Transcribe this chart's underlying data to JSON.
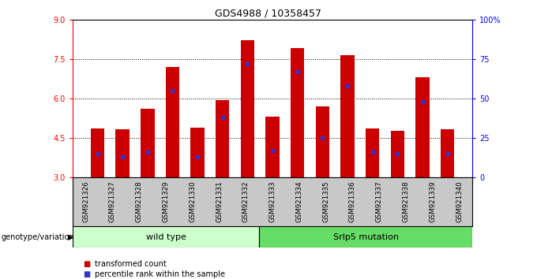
{
  "title": "GDS4988 / 10358457",
  "samples": [
    "GSM921326",
    "GSM921327",
    "GSM921328",
    "GSM921329",
    "GSM921330",
    "GSM921331",
    "GSM921332",
    "GSM921333",
    "GSM921334",
    "GSM921335",
    "GSM921336",
    "GSM921337",
    "GSM921338",
    "GSM921339",
    "GSM921340"
  ],
  "transformed_counts": [
    4.85,
    4.82,
    5.6,
    7.2,
    4.88,
    5.92,
    8.2,
    5.3,
    7.9,
    5.7,
    7.65,
    4.85,
    4.75,
    6.8,
    4.82
  ],
  "percentile_ranks": [
    15,
    13,
    16,
    55,
    13,
    38,
    72,
    17,
    67,
    25,
    58,
    16,
    15,
    48,
    15
  ],
  "bar_color": "#cc0000",
  "marker_color": "#3333cc",
  "ylim_left": [
    3,
    9
  ],
  "ylim_right": [
    0,
    100
  ],
  "yticks_left": [
    3,
    4.5,
    6,
    7.5,
    9
  ],
  "yticks_right": [
    0,
    25,
    50,
    75,
    100
  ],
  "gridlines": [
    4.5,
    6.0,
    7.5
  ],
  "wild_type_count": 7,
  "mutation_count": 8,
  "wild_type_label": "wild type",
  "mutation_label": "Srlp5 mutation",
  "genotype_label": "genotype/variation",
  "legend_transformed": "transformed count",
  "legend_percentile": "percentile rank within the sample",
  "label_area_color": "#c8c8c8",
  "wt_band_color": "#ccffcc",
  "mut_band_color": "#66dd66",
  "bar_bottom": 3.0,
  "bar_width": 0.55
}
